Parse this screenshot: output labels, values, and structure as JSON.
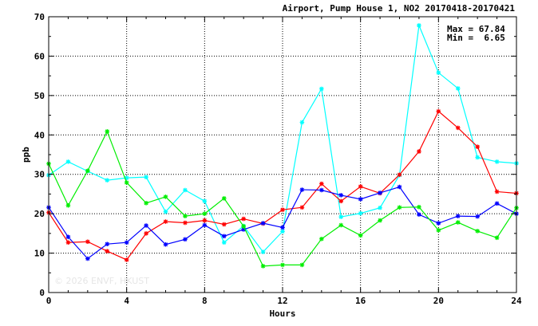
{
  "chart_data": {
    "type": "line",
    "title": "Airport, Pump House 1, NO2 20170418-20170421",
    "xlabel": "Hours",
    "ylabel": "ppb",
    "xlim": [
      0,
      24
    ],
    "ylim": [
      0,
      70
    ],
    "xticks": [
      0,
      4,
      8,
      12,
      16,
      20,
      24
    ],
    "yticks": [
      0,
      10,
      20,
      30,
      40,
      50,
      60,
      70
    ],
    "grid": true,
    "annotations": {
      "max_text": "Max = 67.84",
      "min_text": "Min =  6.65"
    },
    "watermark": "© 2026 ENVF, HKUST",
    "x": [
      0,
      1,
      2,
      3,
      4,
      5,
      6,
      7,
      8,
      9,
      10,
      11,
      12,
      13,
      14,
      15,
      16,
      17,
      18,
      19,
      20,
      21,
      22,
      23,
      24
    ],
    "series": [
      {
        "color": "#00ffff",
        "values": [
          29.8,
          33.2,
          30.8,
          28.5,
          29.1,
          29.3,
          20.5,
          26.0,
          23.2,
          12.7,
          16.9,
          10.3,
          15.5,
          43.2,
          51.7,
          19.2,
          20.1,
          21.5,
          29.8,
          67.8,
          55.8,
          51.8,
          34.3,
          33.2,
          32.8
        ]
      },
      {
        "color": "#ff0000",
        "values": [
          20.3,
          12.7,
          12.9,
          10.5,
          8.3,
          15.0,
          18.0,
          17.7,
          18.3,
          17.3,
          18.7,
          17.5,
          21.0,
          21.6,
          27.6,
          23.2,
          26.9,
          25.2,
          29.9,
          35.8,
          46.0,
          41.8,
          37.0,
          25.6,
          25.2
        ]
      },
      {
        "color": "#0000ff",
        "values": [
          21.6,
          14.1,
          8.6,
          12.3,
          12.7,
          17.0,
          12.2,
          13.5,
          17.1,
          14.3,
          16.0,
          17.6,
          16.5,
          26.1,
          26.0,
          24.7,
          23.7,
          25.3,
          26.8,
          19.8,
          17.6,
          19.4,
          19.3,
          22.6,
          20.0
        ]
      },
      {
        "color": "#00ee00",
        "values": [
          32.7,
          22.1,
          30.9,
          40.9,
          27.9,
          22.7,
          24.3,
          19.4,
          20.0,
          23.9,
          16.8,
          6.7,
          7.0,
          7.0,
          13.6,
          17.1,
          14.5,
          18.3,
          21.6,
          21.7,
          15.8,
          17.8,
          15.6,
          13.9,
          21.5
        ]
      }
    ]
  }
}
